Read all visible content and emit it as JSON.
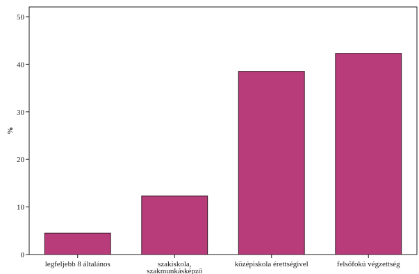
{
  "chart_data": {
    "type": "bar",
    "categories": [
      "legfeljebb 8 általános",
      "szakiskola, szakmunkásképző",
      "középiskola érettségivel",
      "felsőfokú végzettség"
    ],
    "category_label_lines": [
      [
        "legfeljebb 8 általános"
      ],
      [
        "szakiskola,",
        "szakmunkásképző"
      ],
      [
        "középiskola érettségivel"
      ],
      [
        "felsőfokú végzettség"
      ]
    ],
    "values": [
      4.5,
      12.3,
      38.5,
      42.3
    ],
    "ylabel": "%",
    "xlabel": "",
    "title": "",
    "ylim": [
      0,
      50
    ],
    "yticks": [
      0,
      10,
      20,
      30,
      40,
      50
    ],
    "bar_color": "#b83c7a",
    "bar_edge_color": "#3a1a2a",
    "grid": false,
    "legend": "none"
  }
}
